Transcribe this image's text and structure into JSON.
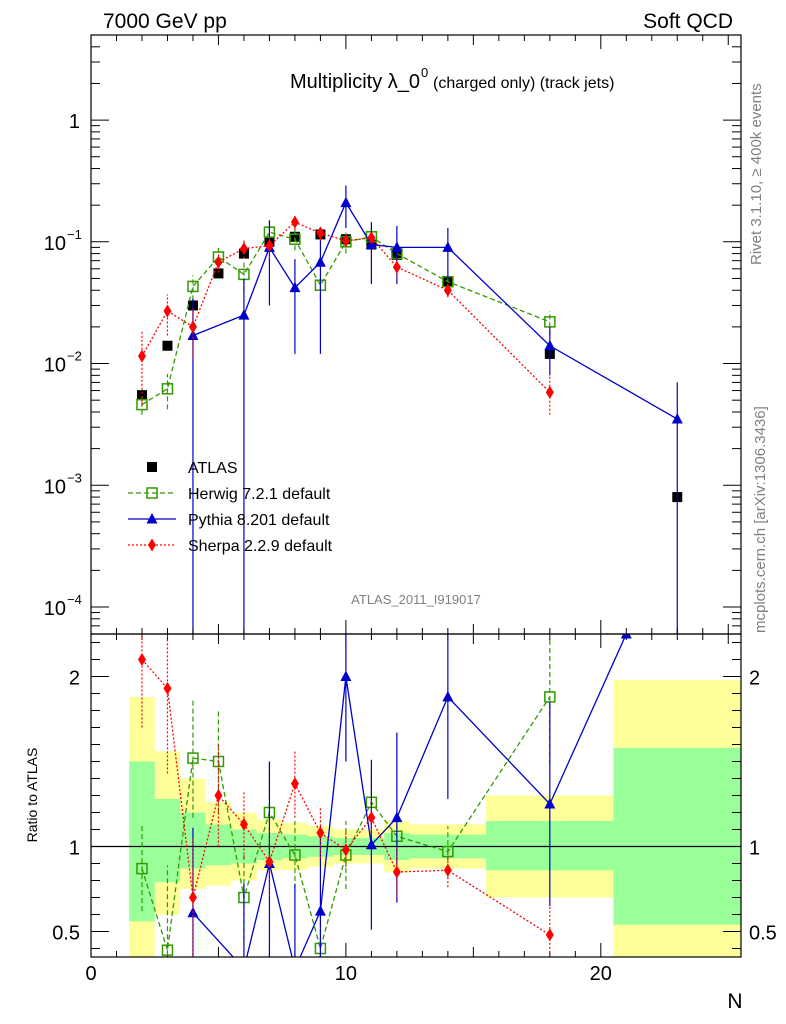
{
  "header": {
    "left": "7000 GeV pp",
    "right": "Soft QCD"
  },
  "side": {
    "top": "Rivet 3.1.10, ≥ 400k events",
    "bottom": "mcplots.cern.ch [arXiv:1306.3436]"
  },
  "chart_data": [
    {
      "type": "line",
      "title_main": "Multiplicity λ_0",
      "title_sup": "0",
      "title_sub": "(charged only) (track jets)",
      "analysis_tag": "ATLAS_2011_I919017",
      "xlabel": "N",
      "ylabel": "",
      "yscale": "log",
      "xlim": [
        0,
        25.5
      ],
      "ylim": [
        6e-05,
        5
      ],
      "yticks": [
        {
          "v": 0.0001,
          "base": "10",
          "exp": "−4"
        },
        {
          "v": 0.001,
          "base": "10",
          "exp": "−3"
        },
        {
          "v": 0.01,
          "base": "10",
          "exp": "−2"
        },
        {
          "v": 0.1,
          "base": "10",
          "exp": "−1"
        },
        {
          "v": 1,
          "base": "1",
          "exp": ""
        }
      ],
      "legend_position": "bottom-left",
      "series": [
        {
          "name": "ATLAS",
          "color": "#000000",
          "marker": "square-filled",
          "style": "none",
          "x": [
            2,
            3,
            4,
            5,
            6,
            7,
            8,
            9,
            10,
            11,
            12,
            14,
            18,
            23
          ],
          "y": [
            0.0055,
            0.014,
            0.03,
            0.055,
            0.08,
            0.1,
            0.11,
            0.115,
            0.105,
            0.095,
            0.078,
            0.047,
            0.012,
            0.0008
          ]
        },
        {
          "name": "Herwig 7.2.1 default",
          "color": "#339900",
          "marker": "square-open",
          "style": "dashed",
          "x": [
            2,
            3,
            4,
            5,
            6,
            7,
            8,
            9,
            10,
            11,
            12,
            14,
            18
          ],
          "y": [
            0.0046,
            0.0062,
            0.043,
            0.075,
            0.054,
            0.12,
            0.105,
            0.044,
            0.1,
            0.11,
            0.08,
            0.047,
            0.022
          ],
          "err": [
            0.0008,
            0.002,
            0.01,
            0.015,
            0.015,
            0.03,
            0.02,
            0.01,
            0.02,
            0.02,
            0.01,
            0.006,
            0.005
          ]
        },
        {
          "name": "Pythia 8.201 default",
          "color": "#0000cc",
          "marker": "triangle",
          "style": "solid",
          "x": [
            4,
            6,
            7,
            8,
            9,
            10,
            11,
            12,
            14,
            18,
            23
          ],
          "y": [
            0.017,
            0.025,
            0.09,
            0.042,
            0.068,
            0.21,
            0.095,
            0.09,
            0.09,
            0.014,
            0.0035
          ],
          "err": [
            0.017,
            0.025,
            0.06,
            0.03,
            0.056,
            0.08,
            0.05,
            0.045,
            0.04,
            0.006,
            0.0035
          ]
        },
        {
          "name": "Sherpa 2.2.9 default",
          "color": "#ff0000",
          "marker": "diamond",
          "style": "dotted",
          "x": [
            2,
            3,
            4,
            5,
            6,
            7,
            8,
            9,
            10,
            11,
            12,
            14,
            18
          ],
          "y": [
            0.0115,
            0.027,
            0.02,
            0.068,
            0.088,
            0.093,
            0.145,
            0.118,
            0.102,
            0.108,
            0.062,
            0.04,
            0.0058
          ],
          "err": [
            0.007,
            0.01,
            0.009,
            0.012,
            0.015,
            0.02,
            0.02,
            0.015,
            0.01,
            0.01,
            0.01,
            0.005,
            0.002
          ]
        }
      ]
    },
    {
      "type": "line",
      "title": "",
      "xlabel": "N",
      "ylabel": "Ratio to ATLAS",
      "xlim": [
        0,
        25.5
      ],
      "ylim": [
        0.35,
        2.25
      ],
      "xticks": [
        0,
        10,
        20
      ],
      "yticks": [
        0.5,
        1,
        2
      ],
      "bands": {
        "edges": [
          1.5,
          2.5,
          3.5,
          4.5,
          5.5,
          6.5,
          7.5,
          8.5,
          9.5,
          10.5,
          11.5,
          12.5,
          15.5,
          20.5,
          25.5
        ],
        "yellow": [
          [
            0.35,
            1.88
          ],
          [
            0.6,
            1.56
          ],
          [
            0.75,
            1.4
          ],
          [
            0.77,
            1.26
          ],
          [
            0.8,
            1.2
          ],
          [
            0.86,
            1.16
          ],
          [
            0.86,
            1.14
          ],
          [
            0.88,
            1.12
          ],
          [
            0.9,
            1.1
          ],
          [
            0.9,
            1.1
          ],
          [
            0.85,
            1.15
          ],
          [
            0.87,
            1.13
          ],
          [
            0.7,
            1.3
          ],
          [
            0.35,
            1.98
          ]
        ],
        "green": [
          [
            0.56,
            1.5
          ],
          [
            0.79,
            1.28
          ],
          [
            0.87,
            1.2
          ],
          [
            0.89,
            1.13
          ],
          [
            0.9,
            1.1
          ],
          [
            0.92,
            1.08
          ],
          [
            0.93,
            1.07
          ],
          [
            0.94,
            1.06
          ],
          [
            0.95,
            1.05
          ],
          [
            0.95,
            1.05
          ],
          [
            0.92,
            1.08
          ],
          [
            0.93,
            1.07
          ],
          [
            0.86,
            1.15
          ],
          [
            0.54,
            1.58
          ]
        ]
      },
      "series": [
        {
          "name": "Herwig 7.2.1 default",
          "color": "#339900",
          "marker": "square-open",
          "style": "dashed",
          "x": [
            2,
            3,
            4,
            5,
            6,
            7,
            8,
            9,
            10,
            11,
            12,
            14,
            18
          ],
          "y": [
            0.87,
            0.39,
            1.52,
            1.5,
            0.7,
            1.2,
            0.95,
            0.4,
            0.95,
            1.26,
            1.06,
            0.97,
            1.88
          ],
          "err": [
            0.25,
            0.5,
            0.35,
            0.3,
            0.25,
            0.3,
            0.2,
            0.2,
            0.2,
            0.2,
            0.15,
            0.15,
            0.4
          ]
        },
        {
          "name": "Pythia 8.201 default",
          "color": "#0000cc",
          "marker": "triangle",
          "style": "solid",
          "x": [
            4,
            6,
            7,
            8,
            9,
            10,
            11,
            12,
            14,
            18,
            21
          ],
          "y": [
            0.61,
            0.28,
            0.9,
            0.28,
            0.62,
            2.0,
            1.01,
            1.17,
            1.88,
            1.25,
            2.25
          ],
          "err": [
            0.5,
            0.5,
            0.6,
            0.5,
            0.5,
            0.5,
            0.5,
            0.5,
            0.6,
            0.6,
            0
          ]
        },
        {
          "name": "Sherpa 2.2.9 default",
          "color": "#ff0000",
          "marker": "diamond",
          "style": "dotted",
          "x": [
            2,
            3,
            4,
            5,
            6,
            7,
            8,
            9,
            10,
            11,
            12,
            14,
            18
          ],
          "y": [
            2.1,
            1.93,
            0.7,
            1.3,
            1.13,
            0.91,
            1.37,
            1.08,
            0.98,
            1.17,
            0.85,
            0.86,
            0.48
          ],
          "err": [
            0.4,
            0.5,
            0.35,
            0.3,
            0.2,
            0.2,
            0.2,
            0.15,
            0.1,
            0.1,
            0.15,
            0.1,
            0.2
          ]
        }
      ]
    }
  ]
}
